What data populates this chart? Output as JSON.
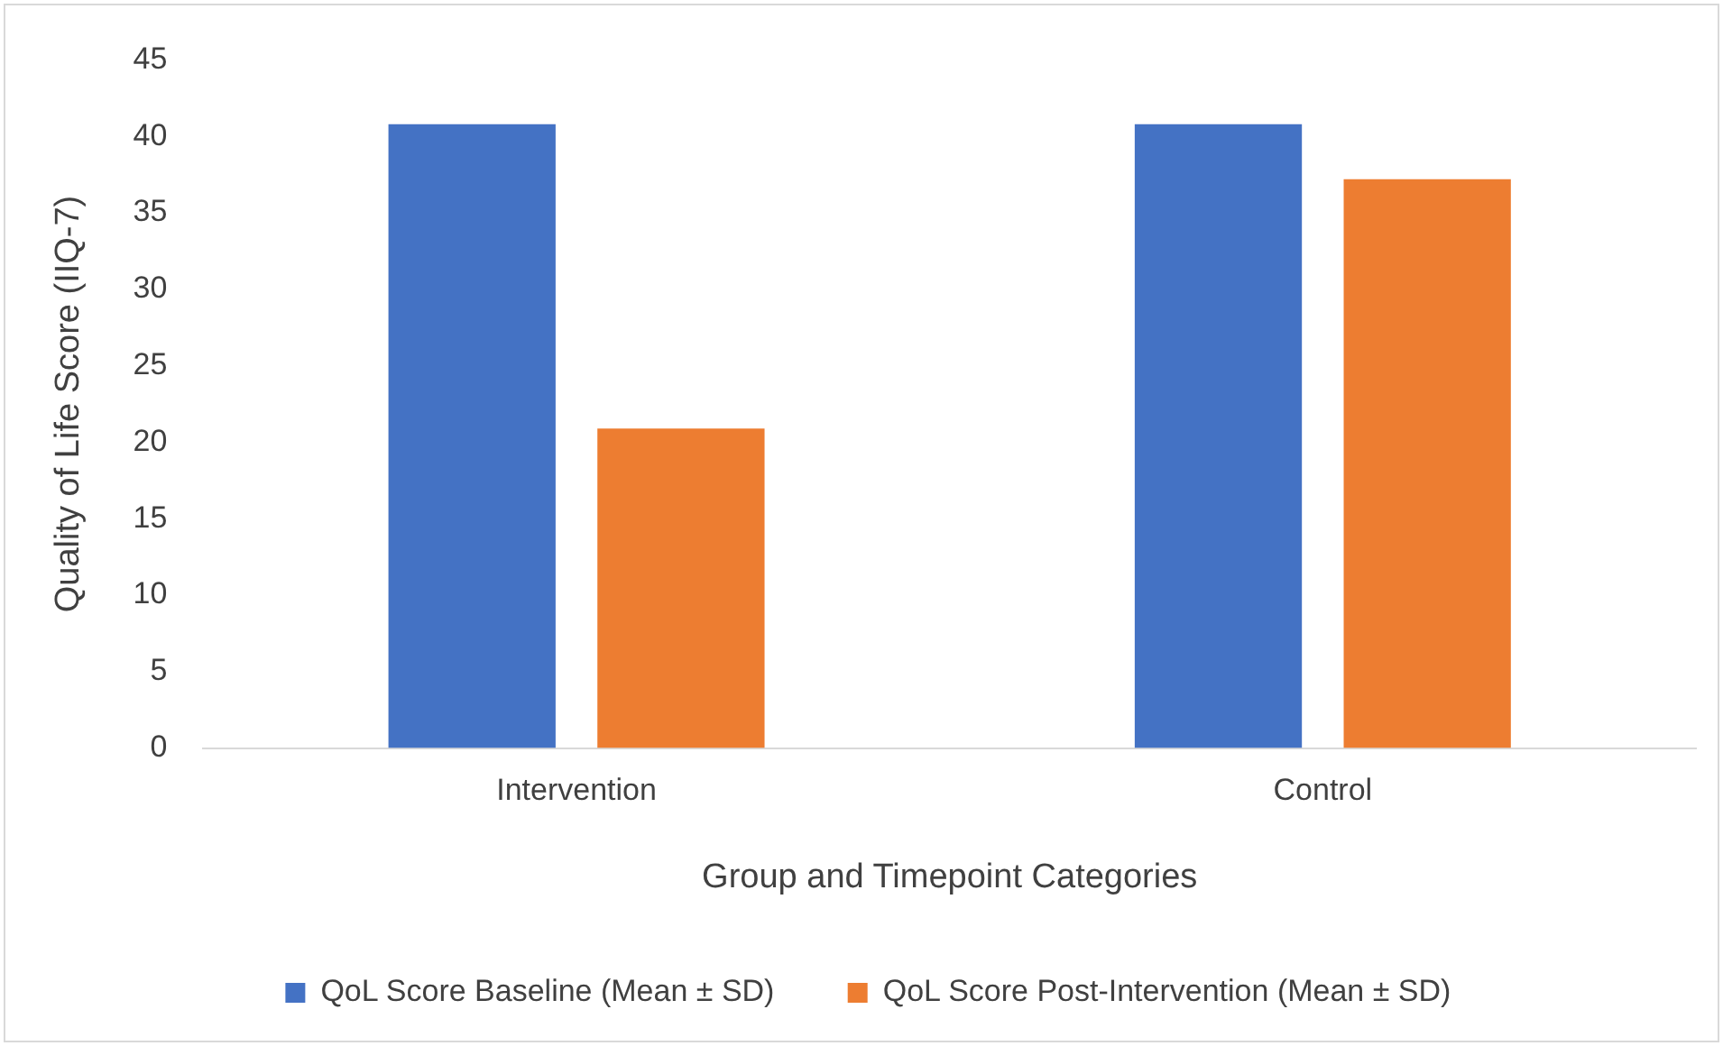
{
  "chart_data": {
    "type": "bar",
    "xlabel": "Group and Timepoint Categories",
    "ylabel": "Quality of Life Score (IIQ-7)",
    "categories": [
      "Intervention",
      "Control"
    ],
    "series": [
      {
        "name": "QoL Score Baseline (Mean ± SD)",
        "color": "#4472c4",
        "values": [
          40.8,
          40.8
        ]
      },
      {
        "name": "QoL Score Post-Intervention (Mean ± SD)",
        "color": "#ed7d31",
        "values": [
          20.9,
          37.2
        ]
      }
    ],
    "ylim": [
      0,
      45
    ],
    "yticks": [
      0,
      5,
      10,
      15,
      20,
      25,
      30,
      35,
      40,
      45
    ],
    "grid": false,
    "legend": "bottom"
  }
}
